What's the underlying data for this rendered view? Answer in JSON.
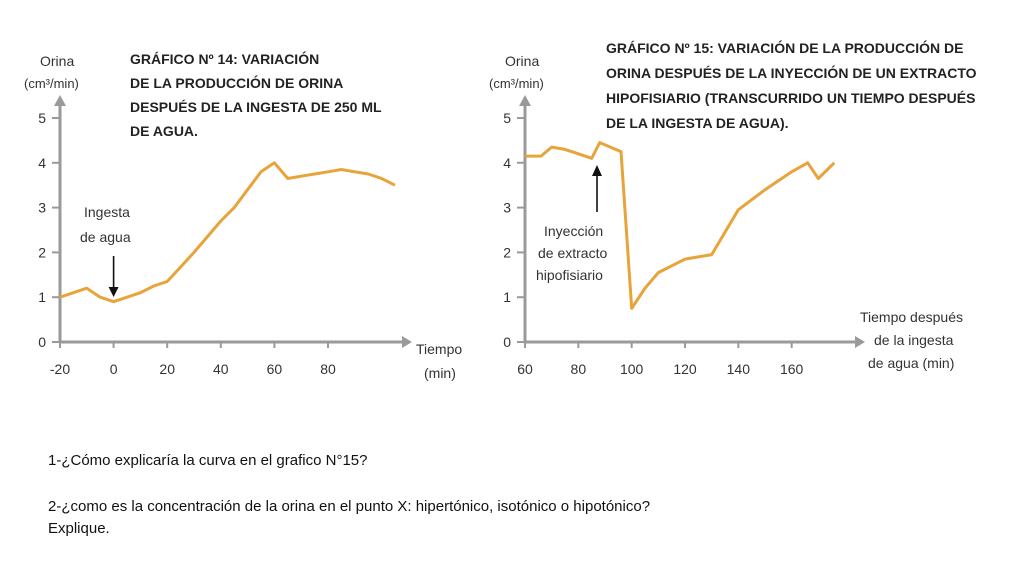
{
  "chart_data": [
    {
      "type": "line",
      "title_lines": [
        "GRÁFICO Nº 14: VARIACIÓN",
        "DE LA PRODUCCIÓN DE ORINA",
        "DESPUÉS DE LA INGESTA DE 250 ML",
        "DE AGUA."
      ],
      "ylabel_lines": [
        "Orina",
        "(cm³/min)"
      ],
      "xlabel_lines": [
        "Tiempo",
        "(min)"
      ],
      "x_ticks": [
        "-20",
        "0",
        "20",
        "40",
        "60",
        "80"
      ],
      "y_ticks": [
        "0",
        "1",
        "2",
        "3",
        "4",
        "5"
      ],
      "xlim": [
        -20,
        105
      ],
      "ylim": [
        0,
        5
      ],
      "annotation_lines": [
        "Ingesta",
        "de agua"
      ],
      "annotation_x": 0,
      "line_color": "#e8a33a",
      "series": [
        {
          "x": [
            -20,
            -15,
            -10,
            -5,
            0,
            5,
            10,
            15,
            20,
            30,
            40,
            45,
            50,
            55,
            60,
            65,
            70,
            75,
            80,
            85,
            90,
            95,
            100,
            105
          ],
          "y": [
            1.0,
            1.1,
            1.2,
            1.0,
            0.9,
            1.0,
            1.1,
            1.25,
            1.35,
            2.0,
            2.7,
            3.0,
            3.4,
            3.8,
            4.0,
            3.65,
            3.7,
            3.75,
            3.8,
            3.85,
            3.8,
            3.75,
            3.65,
            3.5
          ]
        }
      ]
    },
    {
      "type": "line",
      "title_lines": [
        "GRÁFICO Nº 15: VARIACIÓN DE LA PRODUCCIÓN DE",
        "ORINA DESPUÉS DE LA INYECCIÓN DE UN EXTRACTO",
        "HIPOFISIARIO (TRANSCURRIDO UN TIEMPO DESPUÉS",
        "DE LA INGESTA DE AGUA)."
      ],
      "ylabel_lines": [
        "Orina",
        "(cm³/min)"
      ],
      "xlabel_lines": [
        "Tiempo después",
        "de la ingesta",
        "de agua (min)"
      ],
      "x_ticks": [
        "60",
        "80",
        "100",
        "120",
        "140",
        "160"
      ],
      "y_ticks": [
        "0",
        "1",
        "2",
        "3",
        "4",
        "5"
      ],
      "xlim": [
        60,
        180
      ],
      "ylim": [
        0,
        5
      ],
      "annotation_lines": [
        "Inyección",
        "de extracto",
        "hipofisiario"
      ],
      "annotation_x": 87,
      "line_color": "#e8a33a",
      "series": [
        {
          "x": [
            60,
            66,
            70,
            75,
            80,
            85,
            88,
            92,
            96,
            100,
            105,
            110,
            115,
            120,
            130,
            140,
            150,
            160,
            166,
            170,
            176
          ],
          "y": [
            4.15,
            4.15,
            4.35,
            4.3,
            4.2,
            4.1,
            4.45,
            4.35,
            4.25,
            0.75,
            1.2,
            1.55,
            1.7,
            1.85,
            1.95,
            2.95,
            3.4,
            3.8,
            4.0,
            3.65,
            4.0
          ]
        }
      ]
    }
  ],
  "questions": {
    "q1": "1-¿Cómo explicaría la curva en el grafico N°15?",
    "q2_line1": "2-¿como es la concentración de la orina en el punto X: hipertónico, isotónico o hipotónico?",
    "q2_line2": "Explique."
  }
}
